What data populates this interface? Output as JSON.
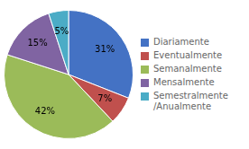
{
  "chart_data": {
    "type": "pie",
    "categories": [
      "Diariamente",
      "Eventualmente",
      "Semanalmente",
      "Mensalmente",
      "Semestralmente\n/Anualmente"
    ],
    "values": [
      31,
      7,
      42,
      15,
      5
    ],
    "value_labels": [
      "31%",
      "7%",
      "42%",
      "15%",
      "5%"
    ],
    "colors": [
      "#4472C4",
      "#C0504D",
      "#9BBB59",
      "#8064A2",
      "#4BACC6"
    ],
    "data_labels": true,
    "legend": "right"
  }
}
